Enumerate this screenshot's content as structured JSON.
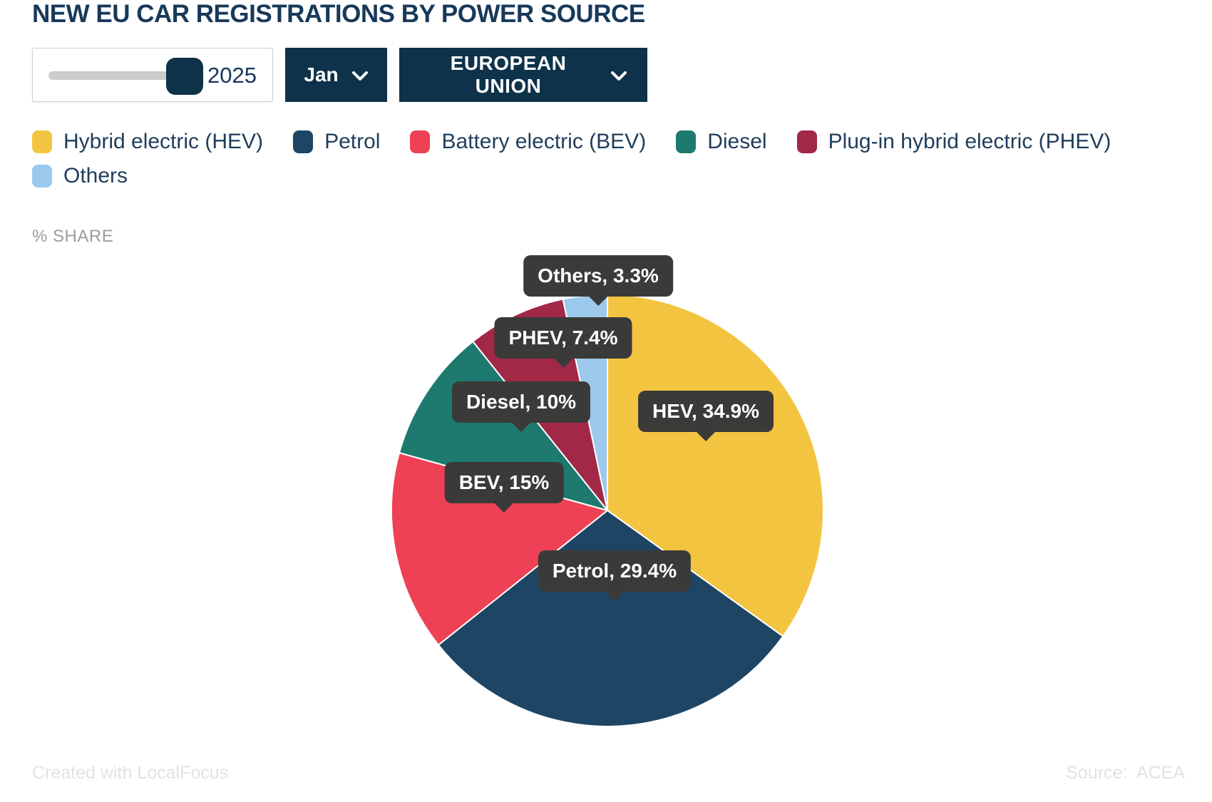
{
  "title": "NEW EU CAR REGISTRATIONS BY POWER SOURCE",
  "controls": {
    "year_slider": {
      "value": "2025"
    },
    "month_dropdown": {
      "value": "Jan"
    },
    "region_dropdown": {
      "value": "EUROPEAN UNION"
    }
  },
  "legend": [
    {
      "label": "Hybrid electric (HEV)",
      "color": "#F3C440"
    },
    {
      "label": "Petrol",
      "color": "#1E4563"
    },
    {
      "label": "Battery electric (BEV)",
      "color": "#EE4155"
    },
    {
      "label": "Diesel",
      "color": "#1E7A6F"
    },
    {
      "label": "Plug-in hybrid electric (PHEV)",
      "color": "#A12846"
    },
    {
      "label": "Others",
      "color": "#9CC9EC"
    }
  ],
  "axis_label": "% SHARE",
  "chart_data": {
    "type": "pie",
    "title": "NEW EU CAR REGISTRATIONS BY POWER SOURCE",
    "unit": "% share",
    "start_angle_deg": 0,
    "direction": "clockwise",
    "slices": [
      {
        "label": "HEV",
        "full_label": "Hybrid electric (HEV)",
        "value": 34.9,
        "color": "#F3C440",
        "tooltip": "HEV, 34.9%"
      },
      {
        "label": "Petrol",
        "full_label": "Petrol",
        "value": 29.4,
        "color": "#1E4563",
        "tooltip": "Petrol, 29.4%"
      },
      {
        "label": "BEV",
        "full_label": "Battery electric (BEV)",
        "value": 15,
        "color": "#EE4155",
        "tooltip": "BEV, 15%"
      },
      {
        "label": "Diesel",
        "full_label": "Diesel",
        "value": 10,
        "color": "#1E7A6F",
        "tooltip": "Diesel, 10%"
      },
      {
        "label": "PHEV",
        "full_label": "Plug-in hybrid electric (PHEV)",
        "value": 7.4,
        "color": "#A12846",
        "tooltip": "PHEV, 7.4%"
      },
      {
        "label": "Others",
        "full_label": "Others",
        "value": 3.3,
        "color": "#9CC9EC",
        "tooltip": "Others, 3.3%"
      }
    ],
    "colors": {
      "accent_navy": "#0E3249",
      "tooltip_bg": "#3A3A38"
    }
  },
  "footer": {
    "left": "Created with LocalFocus",
    "right": "Source:  ACEA"
  }
}
